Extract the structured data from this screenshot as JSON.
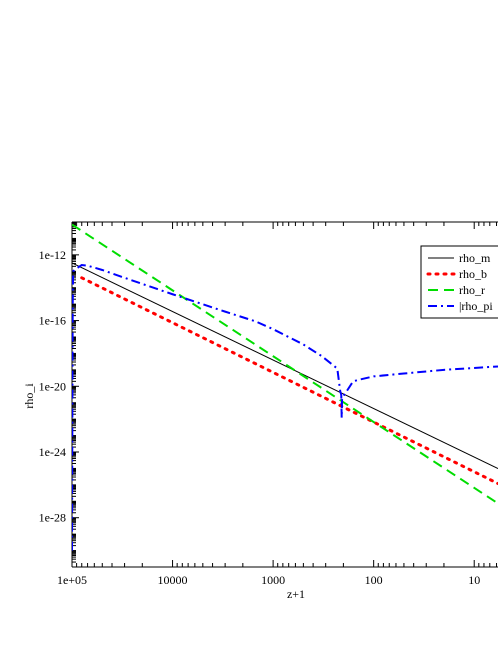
{
  "chart_data": {
    "type": "line",
    "x_scale": "log",
    "y_scale": "log",
    "x_reversed": true,
    "xlim": [
      100000,
      5.8
    ],
    "ylim": [
      1e-31,
      1e-10
    ],
    "xlabel": "z+1",
    "ylabel": "rho_i",
    "x_ticks": [
      {
        "value": 100000,
        "label": "1e+05"
      },
      {
        "value": 10000,
        "label": "10000"
      },
      {
        "value": 1000,
        "label": "1000"
      },
      {
        "value": 100,
        "label": "100"
      },
      {
        "value": 10,
        "label": "10"
      }
    ],
    "y_ticks": [
      {
        "value": 1e-12,
        "label": "1e-12"
      },
      {
        "value": 1e-16,
        "label": "1e-16"
      },
      {
        "value": 1e-20,
        "label": "1e-20"
      },
      {
        "value": 1e-24,
        "label": "1e-24"
      },
      {
        "value": 1e-28,
        "label": "1e-28"
      }
    ],
    "legend_position": "top-right",
    "series": [
      {
        "name": "rho_m",
        "color": "#000000",
        "style": "solid",
        "points": [
          [
            100000,
            3.2e-13
          ],
          [
            5.8,
            9.8e-26
          ]
        ]
      },
      {
        "name": "rho_b",
        "color": "#ff0000",
        "style": "dotted",
        "points": [
          [
            80000,
            4e-14
          ],
          [
            5.8,
            1.2e-26
          ]
        ]
      },
      {
        "name": "rho_r",
        "color": "#00dd00",
        "style": "dashed",
        "points": [
          [
            100000,
            7e-11
          ],
          [
            5.8,
            7.4e-28
          ]
        ]
      },
      {
        "name": "|rho_pi",
        "color": "#0000ff",
        "style": "dashdot",
        "points": [
          [
            100000,
            1e-30
          ],
          [
            99600,
            1e-26
          ],
          [
            99200,
            1e-22
          ],
          [
            98800,
            1e-18
          ],
          [
            98400,
            1e-15
          ],
          [
            97500,
            1e-13
          ],
          [
            90000,
            1.5e-13
          ],
          [
            80000,
            2.4e-13
          ],
          [
            70000,
            2.2e-13
          ],
          [
            50000,
            1.2e-13
          ],
          [
            30000,
            4e-14
          ],
          [
            10000,
            4e-15
          ],
          [
            3000,
            3.5e-16
          ],
          [
            1500,
            9e-17
          ],
          [
            1000,
            3e-17
          ],
          [
            500,
            3.5e-18
          ],
          [
            330,
            7e-19
          ],
          [
            230,
            1.2e-19
          ],
          [
            215,
            5e-21
          ],
          [
            210,
            3e-21
          ],
          [
            208,
            1.2e-22
          ],
          [
            206,
            2e-21
          ],
          [
            190,
            4e-21
          ],
          [
            160,
            2e-20
          ],
          [
            140,
            2.5e-20
          ],
          [
            100,
            4e-20
          ],
          [
            50,
            6e-20
          ],
          [
            20,
            1e-19
          ],
          [
            5.8,
            1.6e-19
          ]
        ]
      }
    ]
  }
}
